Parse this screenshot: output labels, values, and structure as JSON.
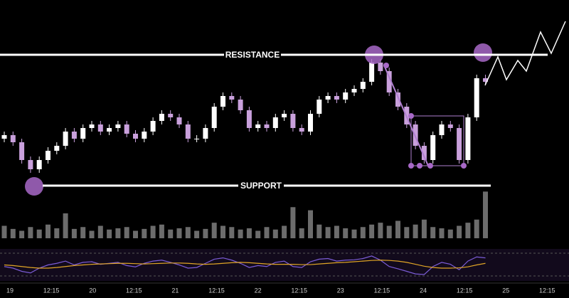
{
  "chart_data": {
    "type": "candlestick",
    "annotations": {
      "resistance": "RESISTANCE",
      "support": "SUPPORT"
    },
    "resistance_level": 203,
    "support_level": 19,
    "ylim": [
      0,
      250
    ],
    "x_labels": [
      "19",
      "12:15",
      "20",
      "12:15",
      "21",
      "12:15",
      "22",
      "12:15",
      "23",
      "12:15",
      "24",
      "12:15",
      "25",
      "12:15"
    ],
    "up_color": "#ffffff",
    "down_color": "#c9a0dc",
    "open": [
      85,
      90,
      80,
      55,
      42,
      55,
      68,
      75,
      95,
      85,
      100,
      105,
      95,
      100,
      105,
      92,
      85,
      95,
      110,
      120,
      115,
      105,
      85,
      85,
      100,
      130,
      145,
      140,
      125,
      100,
      105,
      100,
      115,
      120,
      100,
      95,
      120,
      140,
      145,
      140,
      150,
      155,
      165,
      192,
      180,
      150,
      130,
      105,
      75,
      55,
      90,
      105,
      100,
      55,
      115,
      170
    ],
    "high": [
      95,
      95,
      85,
      60,
      60,
      73,
      80,
      100,
      100,
      105,
      110,
      110,
      105,
      110,
      110,
      97,
      100,
      115,
      125,
      125,
      120,
      110,
      90,
      105,
      135,
      150,
      150,
      145,
      130,
      110,
      110,
      120,
      125,
      125,
      105,
      125,
      145,
      150,
      150,
      155,
      160,
      170,
      197,
      197,
      185,
      155,
      135,
      110,
      80,
      95,
      110,
      110,
      105,
      120,
      175,
      175
    ],
    "low": [
      80,
      75,
      50,
      37,
      37,
      50,
      63,
      70,
      80,
      80,
      95,
      90,
      90,
      95,
      87,
      80,
      80,
      90,
      105,
      110,
      100,
      80,
      80,
      80,
      95,
      125,
      135,
      120,
      95,
      95,
      95,
      95,
      110,
      95,
      90,
      90,
      115,
      135,
      135,
      135,
      145,
      150,
      160,
      175,
      145,
      125,
      100,
      70,
      50,
      50,
      85,
      95,
      50,
      50,
      110,
      160
    ],
    "close": [
      90,
      80,
      55,
      42,
      55,
      68,
      75,
      95,
      85,
      100,
      105,
      95,
      100,
      105,
      92,
      85,
      95,
      110,
      120,
      115,
      105,
      85,
      85,
      100,
      130,
      145,
      140,
      125,
      100,
      105,
      100,
      115,
      120,
      100,
      95,
      120,
      140,
      145,
      140,
      150,
      155,
      165,
      192,
      180,
      150,
      130,
      105,
      75,
      55,
      90,
      105,
      100,
      55,
      115,
      170,
      165
    ],
    "volume": [
      20,
      15,
      12,
      18,
      14,
      22,
      16,
      40,
      15,
      18,
      12,
      20,
      14,
      16,
      18,
      12,
      15,
      20,
      22,
      14,
      16,
      18,
      12,
      15,
      25,
      20,
      18,
      14,
      16,
      12,
      18,
      14,
      20,
      50,
      16,
      45,
      22,
      18,
      20,
      16,
      14,
      18,
      22,
      25,
      20,
      28,
      18,
      22,
      30,
      18,
      16,
      14,
      20,
      25,
      30,
      75
    ],
    "volume_lim": [
      0,
      80
    ],
    "volume_color": "#9a9a9a",
    "rsi_lim": [
      0,
      100
    ],
    "rsi": {
      "color": "#7b5cd6",
      "values": [
        45,
        40,
        30,
        25,
        40,
        50,
        55,
        62,
        50,
        58,
        60,
        52,
        55,
        58,
        48,
        44,
        55,
        62,
        65,
        58,
        50,
        40,
        42,
        55,
        68,
        72,
        65,
        55,
        42,
        48,
        45,
        58,
        62,
        45,
        42,
        60,
        68,
        70,
        62,
        65,
        66,
        70,
        78,
        65,
        45,
        38,
        30,
        22,
        20,
        45,
        58,
        52,
        35,
        62,
        75,
        72
      ]
    },
    "rsi_ma": {
      "color": "#e0a526",
      "values": [
        50,
        48,
        45,
        42,
        40,
        40,
        42,
        45,
        48,
        50,
        52,
        53,
        54,
        55,
        55,
        54,
        53,
        54,
        55,
        56,
        56,
        55,
        53,
        52,
        53,
        55,
        57,
        58,
        57,
        55,
        53,
        52,
        52,
        52,
        51,
        51,
        53,
        55,
        57,
        58,
        60,
        62,
        64,
        65,
        64,
        62,
        58,
        52,
        46,
        42,
        40,
        40,
        41,
        44,
        50,
        55
      ]
    }
  }
}
